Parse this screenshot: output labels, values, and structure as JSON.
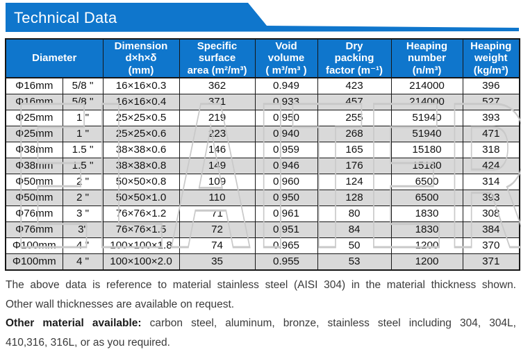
{
  "banner": {
    "title": "Technical Data"
  },
  "watermark": "ELAITER",
  "colors": {
    "accent": "#0f76cc",
    "stripe": "#d9d9d9",
    "border": "#161616",
    "notetext": "#3a3a3a",
    "wmstroke": "#c9c9c9"
  },
  "table": {
    "header": {
      "diameter": "Diameter",
      "columns": [
        "Dimension\nd×h×δ\n(mm)",
        "Specific\nsurface\narea (m²/m³)",
        "Void\nvolume\n( m³/m³ )",
        "Dry\npacking\nfactor (m⁻¹)",
        "Heaping\nnumber\n(n/m³)",
        "Heaping\nweight\n(kg/m³)"
      ]
    },
    "rows": [
      [
        "Φ16mm",
        "5/8 \"",
        "16×16×0.3",
        "362",
        "0.949",
        "423",
        "214000",
        "396"
      ],
      [
        "Φ16mm",
        "5/8 \"",
        "16×16×0.4",
        "371",
        "0.933",
        "457",
        "214000",
        "527"
      ],
      [
        "Φ25mm",
        "1 \"",
        "25×25×0.5",
        "219",
        "0.950",
        "255",
        "51940",
        "393"
      ],
      [
        "Φ25mm",
        "1 \"",
        "25×25×0.6",
        "223",
        "0.940",
        "268",
        "51940",
        "471"
      ],
      [
        "Φ38mm",
        "1.5 \"",
        "38×38×0.6",
        "146",
        "0.959",
        "165",
        "15180",
        "318"
      ],
      [
        "Φ38mm",
        "1.5 \"",
        "38×38×0.8",
        "149",
        "0.946",
        "176",
        "15180",
        "424"
      ],
      [
        "Φ50mm",
        "2 \"",
        "50×50×0.8",
        "109",
        "0.960",
        "124",
        "6500",
        "314"
      ],
      [
        "Φ50mm",
        "2 \"",
        "50×50×1.0",
        "110",
        "0.950",
        "128",
        "6500",
        "393"
      ],
      [
        "Φ76mm",
        "3 \"",
        "76×76×1.2",
        "71",
        "0.961",
        "80",
        "1830",
        "308"
      ],
      [
        "Φ76mm",
        "3\"",
        "76×76×1.5",
        "72",
        "0.951",
        "84",
        "1830",
        "384"
      ],
      [
        "Φ100mm",
        "4 \"",
        "100×100×1.8",
        "74",
        "0.965",
        "50",
        "1200",
        "370"
      ],
      [
        "Φ100mm",
        "4 \"",
        "100×100×2.0",
        "35",
        "0.955",
        "53",
        "1200",
        "371"
      ]
    ]
  },
  "notes": {
    "line1": "The above data is reference to material stainless steel (AISI 304) in the material thickness shown.",
    "line2": "Other wall thicknesses are available on request.",
    "line3_bold": "Other material available:",
    "line3_rest": " carbon steel, aluminum, bronze, stainless steel including 304, 304L,",
    "line4": "410,316, 316L, or as you required."
  }
}
